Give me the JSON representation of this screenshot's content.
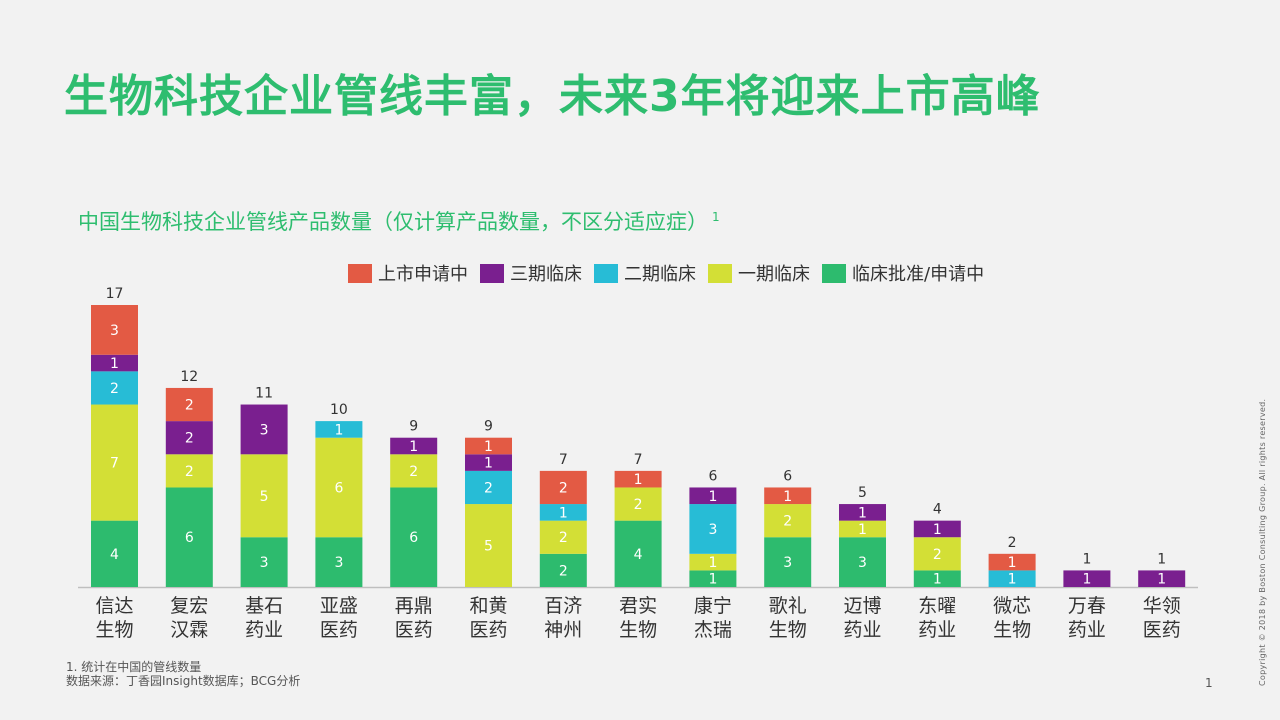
{
  "slide": {
    "title": "生物科技企业管线丰富，未来3年将迎来上市高峰",
    "footnote_line1": "1. 统计在中国的管线数量",
    "footnote_line2": "数据来源：丁香园Insight数据库；BCG分析",
    "page_number": "1",
    "copyright": "Copyright © 2018 by Boston Consulting Group. All rights reserved."
  },
  "chart_data": {
    "type": "bar",
    "stacked": true,
    "title": "中国生物科技企业管线产品数量（仅计算产品数量，不区分适应症）",
    "title_footnote_mark": "1",
    "legend_position": "top",
    "grid": false,
    "ylim": [
      0,
      17
    ],
    "categories": [
      [
        "信达",
        "生物"
      ],
      [
        "复宏",
        "汉霖"
      ],
      [
        "基石",
        "药业"
      ],
      [
        "亚盛",
        "医药"
      ],
      [
        "再鼎",
        "医药"
      ],
      [
        "和黄",
        "医药"
      ],
      [
        "百济",
        "神州"
      ],
      [
        "君实",
        "生物"
      ],
      [
        "康宁",
        "杰瑞"
      ],
      [
        "歌礼",
        "生物"
      ],
      [
        "迈博",
        "药业"
      ],
      [
        "东曜",
        "药业"
      ],
      [
        "微芯",
        "生物"
      ],
      [
        "万春",
        "药业"
      ],
      [
        "华领",
        "医药"
      ]
    ],
    "totals": [
      17,
      12,
      11,
      10,
      9,
      9,
      7,
      7,
      6,
      6,
      5,
      4,
      2,
      1,
      1
    ],
    "series": [
      {
        "name": "临床批准/申请中",
        "color": "#2dbb6e",
        "values": [
          4,
          6,
          3,
          3,
          6,
          0,
          2,
          4,
          1,
          3,
          3,
          1,
          0,
          0,
          0
        ]
      },
      {
        "name": "一期临床",
        "color": "#d3df36",
        "values": [
          7,
          2,
          5,
          6,
          2,
          5,
          2,
          2,
          1,
          2,
          1,
          2,
          0,
          0,
          0
        ]
      },
      {
        "name": "二期临床",
        "color": "#27bcd6",
        "values": [
          2,
          0,
          0,
          1,
          0,
          2,
          1,
          0,
          3,
          0,
          0,
          0,
          1,
          0,
          0
        ]
      },
      {
        "name": "三期临床",
        "color": "#7a1f8f",
        "values": [
          1,
          2,
          3,
          0,
          1,
          1,
          0,
          0,
          1,
          0,
          1,
          1,
          0,
          1,
          1
        ]
      },
      {
        "name": "上市申请中",
        "color": "#e35a44",
        "values": [
          3,
          2,
          0,
          0,
          0,
          1,
          2,
          1,
          0,
          1,
          0,
          0,
          1,
          0,
          0
        ]
      }
    ],
    "legend_order": [
      "上市申请中",
      "三期临床",
      "二期临床",
      "一期临床",
      "临床批准/申请中"
    ]
  }
}
